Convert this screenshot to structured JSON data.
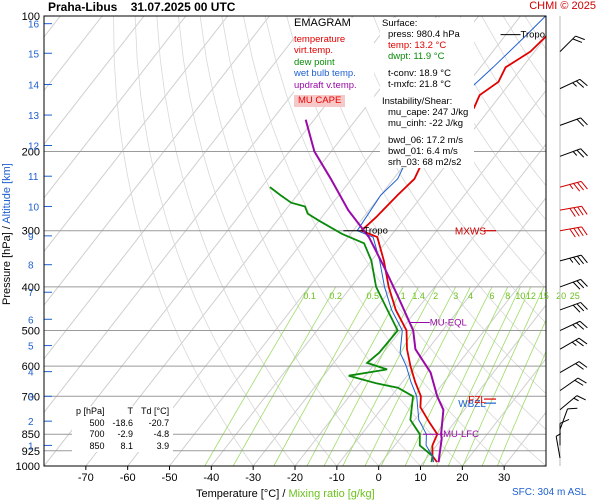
{
  "header": {
    "station": "Praha-Libus",
    "datetime": "31.07.2025 00 UTC",
    "copyright": "CHMI © 2025"
  },
  "legend": {
    "title": "EMAGRAM",
    "items": [
      {
        "label": "temperature",
        "color": "#e00000"
      },
      {
        "label": "virt.temp.",
        "color": "#e00000"
      },
      {
        "label": "dew point",
        "color": "#0a8a0a"
      },
      {
        "label": "wet bulb temp.",
        "color": "#2060d0"
      },
      {
        "label": "updraft v.temp.",
        "color": "#9a0aa8"
      }
    ],
    "cape_tag": "MU CAPE"
  },
  "info": {
    "surface_heading": "Surface:",
    "surface_lines": [
      {
        "text": "press: 980.4 hPa",
        "color": "#000000"
      },
      {
        "text": "temp: 13.2 °C",
        "color": "#e00000"
      },
      {
        "text": "dwpt: 11.9 °C",
        "color": "#0a8a0a"
      }
    ],
    "tconv": "t-conv: 18.9 °C",
    "tmxfc": "t-mxfc: 21.8 °C",
    "shear_heading": "Instability/Shear:",
    "shear_lines": [
      "mu_cape: 247 J/kg",
      "mu_cinh: -22 J/kg",
      "bwd_06: 17.2 m/s",
      "bwd_01: 6.4 m/s",
      "srh_03: 68 m2/s2"
    ]
  },
  "table": {
    "headers": [
      "p [hPa]",
      "T",
      "Td [°C]"
    ],
    "rows": [
      [
        "500",
        "-18.6",
        "-20.7"
      ],
      [
        "700",
        "-2.9",
        "-4.8"
      ],
      [
        "850",
        "8.1",
        "3.9"
      ]
    ]
  },
  "axes": {
    "ylabel_pressure": "Pressure [hPa]",
    "ylabel_sep": "/",
    "ylabel_altitude": "Altitude [km]",
    "xlabel_temp": "Temperature [°C]",
    "xlabel_sep": "/",
    "xlabel_mix": "Mixing ratio [g/kg]",
    "sfc": "SFC: 304 m ASL"
  },
  "chart_data": {
    "type": "line",
    "title": "EMAGRAM",
    "xlabel": "Temperature [°C] / Mixing ratio [g/kg]",
    "ylabel": "Pressure [hPa] / Altitude [km]",
    "xlim": [
      -80,
      40
    ],
    "ylim": [
      1000,
      100
    ],
    "y_scale": "log",
    "x_ticks": [
      -70,
      -60,
      -50,
      -40,
      -30,
      -20,
      -10,
      0,
      10,
      20,
      30
    ],
    "p_ticks": [
      100,
      200,
      300,
      400,
      500,
      600,
      700,
      850,
      925,
      1000
    ],
    "alt_ticks_km": [
      {
        "km": 1,
        "p": 900
      },
      {
        "km": 2,
        "p": 795
      },
      {
        "km": 3,
        "p": 700
      },
      {
        "km": 4,
        "p": 617
      },
      {
        "km": 5,
        "p": 540
      },
      {
        "km": 6,
        "p": 472
      },
      {
        "km": 7,
        "p": 411
      },
      {
        "km": 8,
        "p": 357
      },
      {
        "km": 9,
        "p": 308
      },
      {
        "km": 10,
        "p": 265
      },
      {
        "km": 11,
        "p": 227
      },
      {
        "km": 12,
        "p": 194
      },
      {
        "km": 13,
        "p": 166
      },
      {
        "km": 14,
        "p": 142
      },
      {
        "km": 15,
        "p": 121
      },
      {
        "km": 16,
        "p": 104
      }
    ],
    "mixing_ratio_labels": [
      "0.1",
      "0.2",
      "0.5",
      "1",
      "1.4",
      "2",
      "3",
      "4",
      "6",
      "8",
      "10",
      "12",
      "15",
      "20",
      "25"
    ],
    "mixing_ratio_values": [
      0.1,
      0.2,
      0.5,
      1,
      1.4,
      2,
      3,
      4,
      6,
      8,
      10,
      12,
      15,
      20,
      25
    ],
    "grid": true,
    "series": [
      {
        "name": "temperature",
        "color": "#e00000",
        "points": [
          [
            13.2,
            980
          ],
          [
            11,
            950
          ],
          [
            9,
            900
          ],
          [
            8.1,
            850
          ],
          [
            4,
            800
          ],
          [
            -1,
            740
          ],
          [
            -2.9,
            700
          ],
          [
            -7,
            650
          ],
          [
            -11,
            600
          ],
          [
            -15,
            550
          ],
          [
            -18.6,
            500
          ],
          [
            -25,
            450
          ],
          [
            -31,
            400
          ],
          [
            -37,
            350
          ],
          [
            -43,
            310
          ],
          [
            -48,
            300
          ],
          [
            -47,
            280
          ],
          [
            -46,
            250
          ],
          [
            -45,
            230
          ],
          [
            -47,
            200
          ],
          [
            -46,
            180
          ],
          [
            -44,
            160
          ],
          [
            -45,
            150
          ],
          [
            -43,
            140
          ],
          [
            -44,
            130
          ],
          [
            -41,
            120
          ],
          [
            -40,
            110
          ],
          [
            -38,
            100
          ]
        ]
      },
      {
        "name": "dew point",
        "color": "#0a8a0a",
        "points": [
          [
            11.9,
            980
          ],
          [
            11,
            950
          ],
          [
            6,
            900
          ],
          [
            3.9,
            850
          ],
          [
            -1,
            790
          ],
          [
            -4.8,
            700
          ],
          [
            -10,
            670
          ],
          [
            -16,
            655
          ],
          [
            -24,
            630
          ],
          [
            -16,
            610
          ],
          [
            -22,
            590
          ],
          [
            -21,
            560
          ],
          [
            -20.7,
            500
          ],
          [
            -27,
            450
          ],
          [
            -34,
            400
          ],
          [
            -40,
            350
          ],
          [
            -45,
            320
          ],
          [
            -52,
            305
          ],
          [
            -60,
            285
          ],
          [
            -64,
            275
          ],
          [
            -66,
            265
          ],
          [
            -70,
            260
          ],
          [
            -74,
            250
          ],
          [
            -78,
            240
          ]
        ]
      },
      {
        "name": "wet bulb temp.",
        "color": "#2060d0",
        "points": [
          [
            12.4,
            980
          ],
          [
            11,
            950
          ],
          [
            7.5,
            900
          ],
          [
            5.5,
            850
          ],
          [
            1,
            790
          ],
          [
            -3.9,
            700
          ],
          [
            -8,
            650
          ],
          [
            -12,
            600
          ],
          [
            -16,
            560
          ],
          [
            -19.6,
            500
          ],
          [
            -26,
            450
          ],
          [
            -32,
            400
          ],
          [
            -38,
            350
          ],
          [
            -44,
            310
          ],
          [
            -49,
            300
          ],
          [
            -50,
            250
          ],
          [
            -49,
            230
          ],
          [
            -51,
            200
          ],
          [
            -50,
            170
          ],
          [
            -49,
            150
          ],
          [
            -47,
            130
          ],
          [
            -45,
            110
          ],
          [
            -44,
            100
          ]
        ]
      },
      {
        "name": "updraft v.temp.",
        "color": "#9a0aa8",
        "points": [
          [
            13.6,
            980
          ],
          [
            12,
            930
          ],
          [
            10,
            870
          ],
          [
            9,
            850
          ],
          [
            5,
            750
          ],
          [
            1,
            700
          ],
          [
            -5,
            620
          ],
          [
            -13,
            550
          ],
          [
            -17,
            500
          ],
          [
            -27,
            420
          ],
          [
            -36,
            360
          ],
          [
            -45,
            310
          ],
          [
            -55,
            270
          ],
          [
            -65,
            230
          ],
          [
            -74,
            200
          ],
          [
            -82,
            170
          ]
        ]
      }
    ],
    "markers": [
      {
        "label": "Tropo",
        "p": 110,
        "t": -47,
        "color": "#000000"
      },
      {
        "label": "Tropo",
        "p": 300,
        "t": -48,
        "color": "#000000"
      },
      {
        "label": "MU-EQL",
        "p": 480,
        "t": -15,
        "color": "#9a0aa8"
      },
      {
        "label": "MU-LFC",
        "p": 850,
        "t": 9,
        "color": "#9a0aa8"
      }
    ],
    "side_labels": [
      {
        "label": "MXWS",
        "p": 300,
        "color": "#d00000"
      },
      {
        "label": "WBZL",
        "p": 725,
        "color": "#2060d0"
      },
      {
        "label": "FZL",
        "p": 710,
        "color": "#e00000"
      }
    ],
    "wind_barbs": [
      {
        "p": 120,
        "dir": 225,
        "kt": 20
      },
      {
        "p": 145,
        "dir": 245,
        "kt": 25
      },
      {
        "p": 175,
        "dir": 250,
        "kt": 20
      },
      {
        "p": 205,
        "dir": 250,
        "kt": 25
      },
      {
        "p": 240,
        "dir": 255,
        "kt": 35
      },
      {
        "p": 270,
        "dir": 260,
        "kt": 40
      },
      {
        "p": 300,
        "dir": 260,
        "kt": 40
      },
      {
        "p": 350,
        "dir": 255,
        "kt": 35
      },
      {
        "p": 400,
        "dir": 250,
        "kt": 30
      },
      {
        "p": 450,
        "dir": 250,
        "kt": 30
      },
      {
        "p": 500,
        "dir": 245,
        "kt": 25
      },
      {
        "p": 550,
        "dir": 240,
        "kt": 25
      },
      {
        "p": 620,
        "dir": 240,
        "kt": 20
      },
      {
        "p": 680,
        "dir": 235,
        "kt": 20
      },
      {
        "p": 750,
        "dir": 230,
        "kt": 15
      },
      {
        "p": 830,
        "dir": 200,
        "kt": 10
      },
      {
        "p": 900,
        "dir": 180,
        "kt": 10
      },
      {
        "p": 960,
        "dir": 170,
        "kt": 5
      }
    ]
  }
}
